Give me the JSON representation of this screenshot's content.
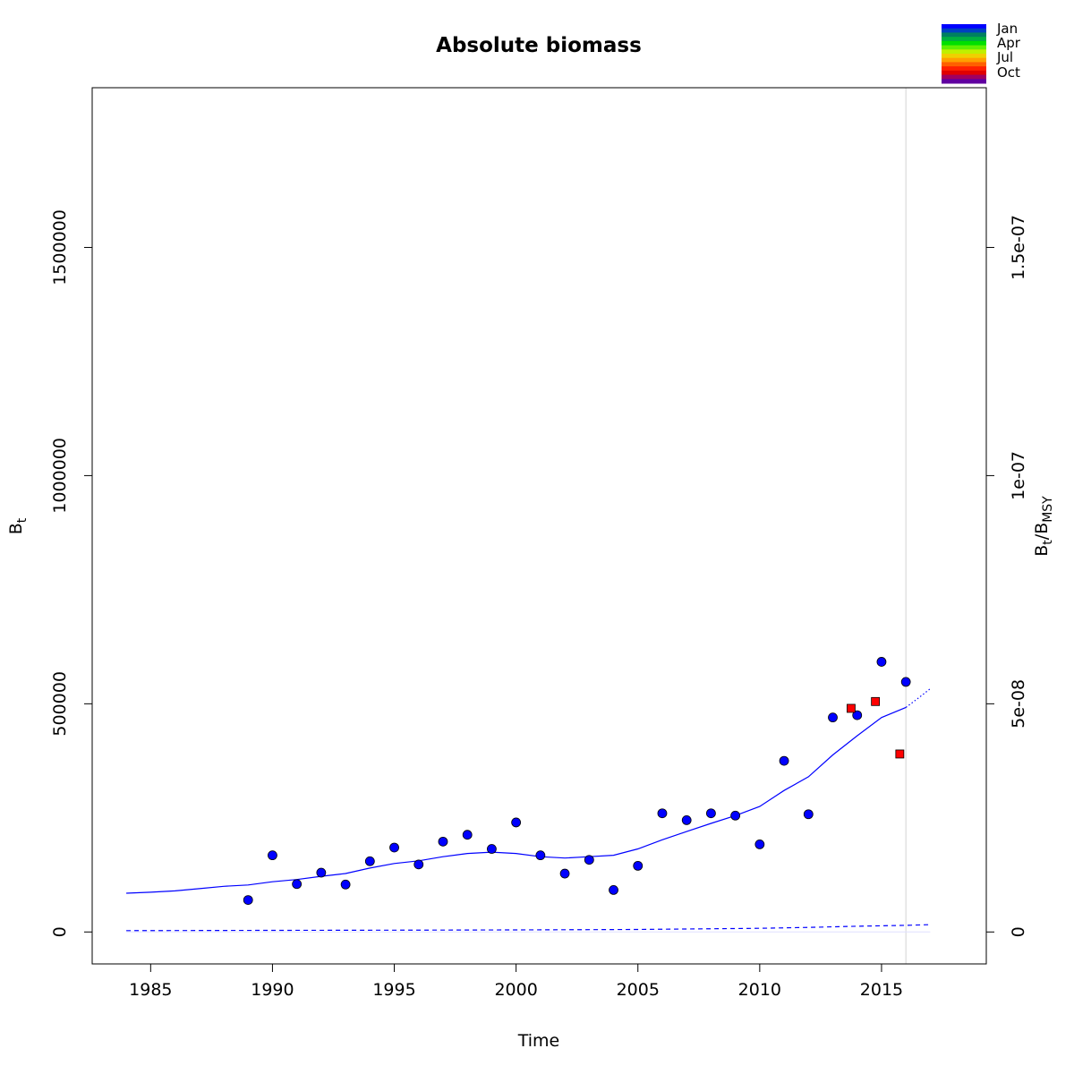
{
  "chart_data": {
    "type": "scatter",
    "title": "Absolute biomass",
    "xlabel": "Time",
    "ylabel": "B",
    "ylabel_sub": "t",
    "y2label_main": "B",
    "y2label_sub1": "t",
    "y2label_slash": "/B",
    "y2label_sub2": "MSY",
    "xlim": [
      1982.6,
      2019.3
    ],
    "ylim": [
      -70000,
      1850000
    ],
    "y2lim": [
      -7e-09,
      1.85e-07
    ],
    "x_ticks": [
      1985,
      1990,
      1995,
      2000,
      2005,
      2010,
      2015
    ],
    "x_tick_labels": [
      "1985",
      "1990",
      "1995",
      "2000",
      "2005",
      "2010",
      "2015"
    ],
    "y_ticks": [
      0,
      500000,
      1000000,
      1500000
    ],
    "y_tick_labels": [
      "0",
      "500000",
      "1000000",
      "1500000"
    ],
    "y2_ticks": [
      0,
      5e-08,
      1e-07,
      1.5e-07
    ],
    "y2_tick_labels": [
      "0",
      "5e-08",
      "1e-07",
      "1.5e-07"
    ],
    "vline_x": 2016,
    "grid": false,
    "legend_position": "top-right",
    "legend": {
      "labels": [
        "Jan",
        "Apr",
        "Jul",
        "Oct"
      ],
      "colors": [
        "#0000ff",
        "#0040c0",
        "#008060",
        "#00b040",
        "#00e000",
        "#60f000",
        "#c0f000",
        "#f0d000",
        "#ffa000",
        "#ff6000",
        "#ff2000",
        "#e00000",
        "#a00060",
        "#6000a0"
      ]
    },
    "series": [
      {
        "style": "points-circle",
        "color": "#0000ff",
        "x": [
          1989,
          1990,
          1991,
          1992,
          1993,
          1994,
          1995,
          1996,
          1997,
          1998,
          1999,
          2000,
          2001,
          2002,
          2003,
          2004,
          2005,
          2006,
          2007,
          2008,
          2009,
          2010,
          2011,
          2012,
          2013,
          2014,
          2015,
          2016
        ],
        "y": [
          70000,
          168000,
          105000,
          130000,
          104000,
          155000,
          185000,
          148000,
          198000,
          213000,
          182000,
          240000,
          168000,
          128000,
          158000,
          92000,
          145000,
          260000,
          245000,
          260000,
          255000,
          192000,
          375000,
          258000,
          470000,
          475000,
          592000,
          548000
        ]
      },
      {
        "style": "points-square",
        "color": "#ff0000",
        "x": [
          2013.75,
          2014.75,
          2015.75
        ],
        "y": [
          490000,
          505000,
          390000
        ]
      },
      {
        "style": "line-solid",
        "color": "#0000ff",
        "x": [
          1984,
          1985,
          1986,
          1987,
          1988,
          1989,
          1990,
          1991,
          1992,
          1993,
          1994,
          1995,
          1996,
          1997,
          1998,
          1999,
          2000,
          2001,
          2002,
          2003,
          2004,
          2005,
          2006,
          2007,
          2008,
          2009,
          2010,
          2011,
          2012,
          2013,
          2014,
          2015,
          2016
        ],
        "y": [
          85000,
          87000,
          90000,
          95000,
          100000,
          103000,
          110000,
          115000,
          122000,
          128000,
          140000,
          150000,
          156000,
          165000,
          172000,
          175000,
          172000,
          165000,
          162000,
          165000,
          168000,
          182000,
          202000,
          220000,
          238000,
          255000,
          275000,
          310000,
          340000,
          388000,
          430000,
          470000,
          492000
        ]
      },
      {
        "style": "line-dotted",
        "color": "#0000ff",
        "x": [
          2016,
          2016.5,
          2017
        ],
        "y": [
          492000,
          512000,
          533000
        ]
      },
      {
        "style": "line-dashed",
        "color": "#0000ff",
        "x": [
          1984,
          1990,
          1995,
          2000,
          2005,
          2010,
          2012,
          2014,
          2016,
          2017
        ],
        "y": [
          3000,
          3500,
          4000,
          4500,
          5500,
          8000,
          10000,
          12500,
          14500,
          16000
        ]
      }
    ]
  }
}
